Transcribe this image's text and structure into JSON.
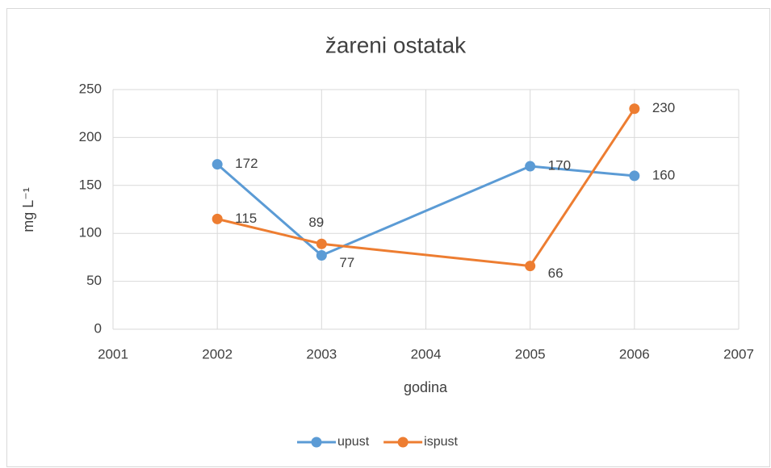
{
  "chart_data": {
    "type": "line",
    "title": "žareni ostatak",
    "xlabel": "godina",
    "ylabel": "mg L⁻¹",
    "x": [
      2002,
      2003,
      2005,
      2006
    ],
    "series": [
      {
        "name": "upust",
        "color": "#5b9bd5",
        "values": [
          172,
          77,
          170,
          160
        ]
      },
      {
        "name": "ispust",
        "color": "#ed7d31",
        "values": [
          115,
          89,
          66,
          230
        ]
      }
    ],
    "xlim": [
      2001,
      2007
    ],
    "xticks": [
      2001,
      2002,
      2003,
      2004,
      2005,
      2006,
      2007
    ],
    "ylim": [
      0,
      250
    ],
    "yticks": [
      0,
      50,
      100,
      150,
      200,
      250
    ],
    "grid": true,
    "legend": "bottom"
  }
}
